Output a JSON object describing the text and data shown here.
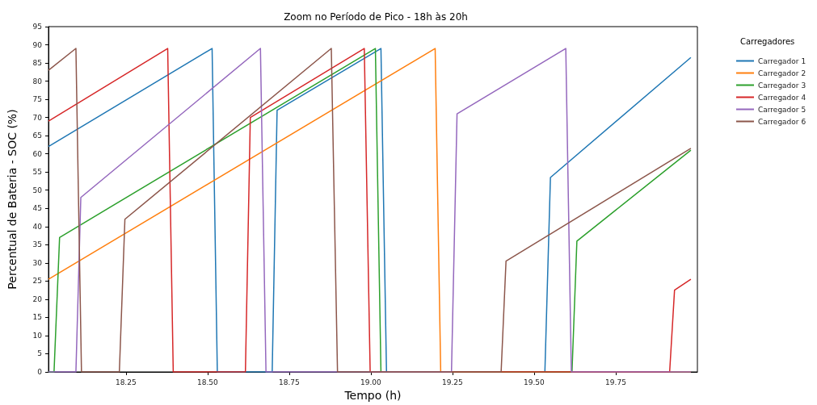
{
  "chart_data": {
    "type": "line",
    "title": "Zoom no Período de Pico - 18h às 20h",
    "xlabel": "Tempo (h)",
    "ylabel": "Percentual de Bateria - SOC (%)",
    "legend_title": "Carregadores",
    "legend": "top right",
    "grid": false,
    "marker": "none",
    "line_style": "solid",
    "xlim": [
      18.013,
      20.0
    ],
    "ylim": [
      0,
      95
    ],
    "xticks": [
      18.25,
      {
        "value": 18.5,
        "label": "18.50"
      },
      18.75,
      {
        "value": 19,
        "label": "19.00"
      },
      19.25,
      {
        "value": 19.5,
        "label": "19.50"
      },
      19.75
    ],
    "yticks": [
      0,
      5,
      10,
      15,
      20,
      25,
      30,
      35,
      40,
      45,
      50,
      55,
      60,
      65,
      70,
      75,
      80,
      85,
      90,
      95
    ],
    "series": [
      {
        "name": "Carregador 1",
        "color": "#1f77b4",
        "x": [
          18.013,
          18.514,
          18.53,
          18.698,
          18.713,
          19.031,
          19.048,
          19.533,
          19.55,
          19.98
        ],
        "values": [
          62,
          89,
          0,
          0,
          72,
          89,
          0,
          0,
          53.5,
          86.5
        ]
      },
      {
        "name": "Carregador 2",
        "color": "#ff7f0e",
        "x": [
          18.013,
          19.197,
          19.214,
          19.98
        ],
        "values": [
          25.5,
          89,
          0,
          0
        ]
      },
      {
        "name": "Carregador 3",
        "color": "#2ca02c",
        "x": [
          18.013,
          18.03,
          18.047,
          19.014,
          19.031,
          19.616,
          19.631,
          19.98
        ],
        "values": [
          0,
          0,
          37,
          89,
          0,
          0,
          36,
          61
        ]
      },
      {
        "name": "Carregador 4",
        "color": "#d62728",
        "x": [
          18.013,
          18.378,
          18.395,
          18.616,
          18.631,
          18.98,
          18.998,
          19.915,
          19.93,
          19.98
        ],
        "values": [
          69,
          89,
          0,
          0,
          70,
          89,
          0,
          0,
          22.5,
          25.5
        ]
      },
      {
        "name": "Carregador 5",
        "color": "#9467bd",
        "x": [
          18.013,
          18.097,
          18.112,
          18.662,
          18.679,
          19.247,
          19.264,
          19.597,
          19.614,
          19.98
        ],
        "values": [
          0,
          0,
          48,
          89,
          0,
          0,
          71,
          89,
          0,
          0
        ]
      },
      {
        "name": "Carregador 6",
        "color": "#8c564b",
        "x": [
          18.013,
          18.097,
          18.114,
          18.23,
          18.247,
          18.879,
          18.898,
          19.399,
          19.414,
          19.98
        ],
        "values": [
          83,
          89,
          0,
          0,
          42,
          89,
          0,
          0,
          30.5,
          61.5
        ]
      }
    ]
  }
}
